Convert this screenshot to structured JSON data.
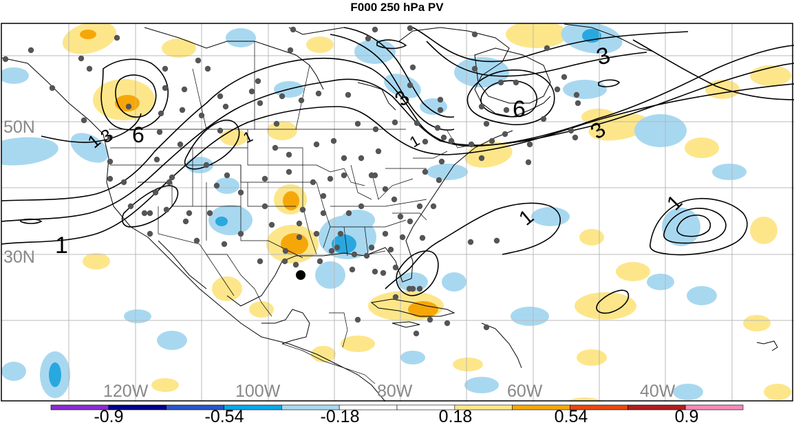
{
  "title": "F000 250 hPa PV",
  "lat_labels": [
    "50N",
    "30N"
  ],
  "lon_labels": [
    "120W",
    "100W",
    "80W",
    "60W",
    "40W"
  ],
  "contour_labels": [
    "1",
    "3",
    "6"
  ],
  "colorbar": {
    "colors": [
      "#8b2bd1",
      "#00008b",
      "#2a55c8",
      "#0aa8e8",
      "#a8d8f0",
      "#ffffff",
      "#ffffff",
      "#fde68a",
      "#f5a70a",
      "#e8480e",
      "#b01e1e",
      "#f58ab8"
    ],
    "labels": [
      "-0.9",
      "-0.54",
      "-0.18",
      "0.18",
      "0.54",
      "0.9"
    ]
  },
  "colors": {
    "positive_light": "#fde68a",
    "positive_mid": "#f5a70a",
    "negative_light": "#a8d8f0",
    "negative_mid": "#29a8e0",
    "grid": "#b8b8b8",
    "station_dots": "#555555",
    "axis_label": "#888888"
  }
}
